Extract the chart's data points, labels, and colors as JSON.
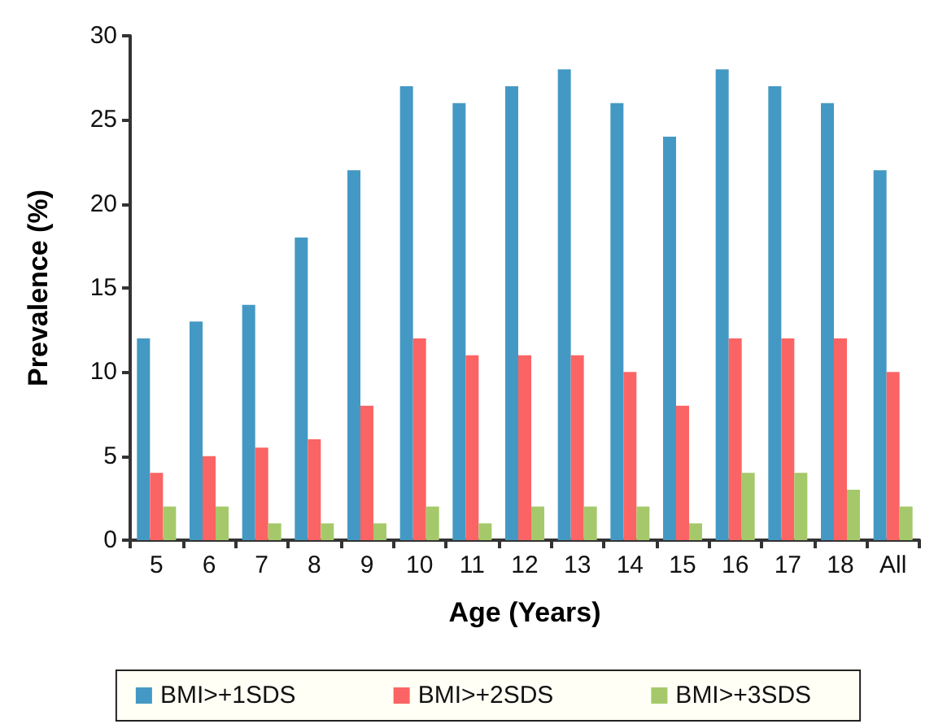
{
  "chart_data": {
    "type": "bar",
    "xlabel": "Age (Years)",
    "ylabel": "Prevalence (%)",
    "categories": [
      "5",
      "6",
      "7",
      "8",
      "9",
      "10",
      "11",
      "12",
      "13",
      "14",
      "15",
      "16",
      "17",
      "18",
      "All"
    ],
    "series": [
      {
        "name": "BMI>+1SDS",
        "color": "#4499c4",
        "values": [
          12,
          13,
          14,
          18,
          22,
          27,
          26,
          27,
          28,
          26,
          24,
          28,
          27,
          26,
          22
        ]
      },
      {
        "name": "BMI>+2SDS",
        "color": "#fb6464",
        "values": [
          4,
          5,
          5.5,
          6,
          8,
          12,
          11,
          11,
          11,
          10,
          8,
          12,
          12,
          12,
          10
        ]
      },
      {
        "name": "BMI>+3SDS",
        "color": "#a5c96a",
        "values": [
          2,
          2,
          1,
          1,
          1,
          2,
          1,
          2,
          2,
          2,
          1,
          4,
          4,
          3,
          2
        ]
      }
    ],
    "ylim": [
      0,
      30
    ],
    "yticks": [
      0,
      5,
      10,
      15,
      20,
      25,
      30
    ],
    "grid": false,
    "legend": "bottom"
  }
}
